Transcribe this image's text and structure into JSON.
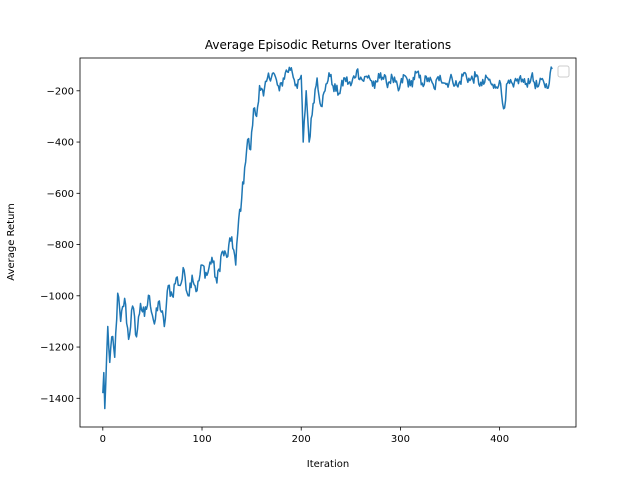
{
  "chart_data": {
    "type": "line",
    "title": "Average Episodic Returns Over Iterations",
    "xlabel": "Iteration",
    "ylabel": "Average Return",
    "xlim": [
      -23,
      477
    ],
    "ylim": [
      -1512,
      -72
    ],
    "xticks": [
      0,
      100,
      200,
      300,
      400
    ],
    "yticks": [
      -1400,
      -1200,
      -1000,
      -800,
      -600,
      -400,
      -200
    ],
    "ytick_labels": [
      "−1400",
      "−1200",
      "−1000",
      "−800",
      "−600",
      "−400",
      "−200"
    ],
    "grid": false,
    "legend": {
      "placement": "top-right",
      "entries": []
    },
    "colors": {
      "line": "#1f77b4"
    },
    "series": [
      {
        "keypoints": [
          [
            0,
            -1380
          ],
          [
            1,
            -1300
          ],
          [
            2,
            -1440
          ],
          [
            3,
            -1340
          ],
          [
            5,
            -1120
          ],
          [
            7,
            -1260
          ],
          [
            9,
            -1160
          ],
          [
            12,
            -1240
          ],
          [
            15,
            -990
          ],
          [
            18,
            -1100
          ],
          [
            22,
            -1010
          ],
          [
            26,
            -1170
          ],
          [
            30,
            -1040
          ],
          [
            34,
            -1160
          ],
          [
            38,
            -1030
          ],
          [
            42,
            -1080
          ],
          [
            47,
            -1000
          ],
          [
            52,
            -1110
          ],
          [
            57,
            -1020
          ],
          [
            62,
            -1120
          ],
          [
            66,
            -960
          ],
          [
            70,
            -1000
          ],
          [
            74,
            -930
          ],
          [
            78,
            -960
          ],
          [
            82,
            -900
          ],
          [
            86,
            -1000
          ],
          [
            90,
            -920
          ],
          [
            95,
            -980
          ],
          [
            100,
            -880
          ],
          [
            105,
            -920
          ],
          [
            110,
            -850
          ],
          [
            115,
            -950
          ],
          [
            120,
            -830
          ],
          [
            125,
            -850
          ],
          [
            130,
            -770
          ],
          [
            134,
            -880
          ],
          [
            137,
            -700
          ],
          [
            140,
            -620
          ],
          [
            143,
            -500
          ],
          [
            146,
            -390
          ],
          [
            149,
            -430
          ],
          [
            152,
            -270
          ],
          [
            155,
            -300
          ],
          [
            158,
            -180
          ],
          [
            162,
            -220
          ],
          [
            166,
            -150
          ],
          [
            172,
            -130
          ],
          [
            178,
            -200
          ],
          [
            184,
            -130
          ],
          [
            190,
            -110
          ],
          [
            196,
            -190
          ],
          [
            200,
            -140
          ],
          [
            202,
            -400
          ],
          [
            205,
            -200
          ],
          [
            208,
            -400
          ],
          [
            212,
            -250
          ],
          [
            216,
            -150
          ],
          [
            220,
            -260
          ],
          [
            224,
            -200
          ],
          [
            228,
            -130
          ],
          [
            232,
            -180
          ],
          [
            238,
            -210
          ],
          [
            244,
            -150
          ],
          [
            250,
            -180
          ],
          [
            256,
            -120
          ],
          [
            262,
            -160
          ],
          [
            268,
            -140
          ],
          [
            274,
            -190
          ],
          [
            280,
            -130
          ],
          [
            286,
            -170
          ],
          [
            292,
            -150
          ],
          [
            298,
            -200
          ],
          [
            304,
            -140
          ],
          [
            310,
            -180
          ],
          [
            316,
            -130
          ],
          [
            322,
            -170
          ],
          [
            328,
            -150
          ],
          [
            334,
            -190
          ],
          [
            340,
            -140
          ],
          [
            346,
            -175
          ],
          [
            352,
            -150
          ],
          [
            358,
            -185
          ],
          [
            364,
            -130
          ],
          [
            370,
            -160
          ],
          [
            376,
            -145
          ],
          [
            382,
            -180
          ],
          [
            388,
            -150
          ],
          [
            394,
            -190
          ],
          [
            400,
            -160
          ],
          [
            404,
            -270
          ],
          [
            408,
            -170
          ],
          [
            414,
            -185
          ],
          [
            420,
            -150
          ],
          [
            426,
            -175
          ],
          [
            432,
            -145
          ],
          [
            438,
            -185
          ],
          [
            444,
            -160
          ],
          [
            448,
            -190
          ],
          [
            451,
            -130
          ],
          [
            453,
            -115
          ]
        ]
      }
    ]
  }
}
